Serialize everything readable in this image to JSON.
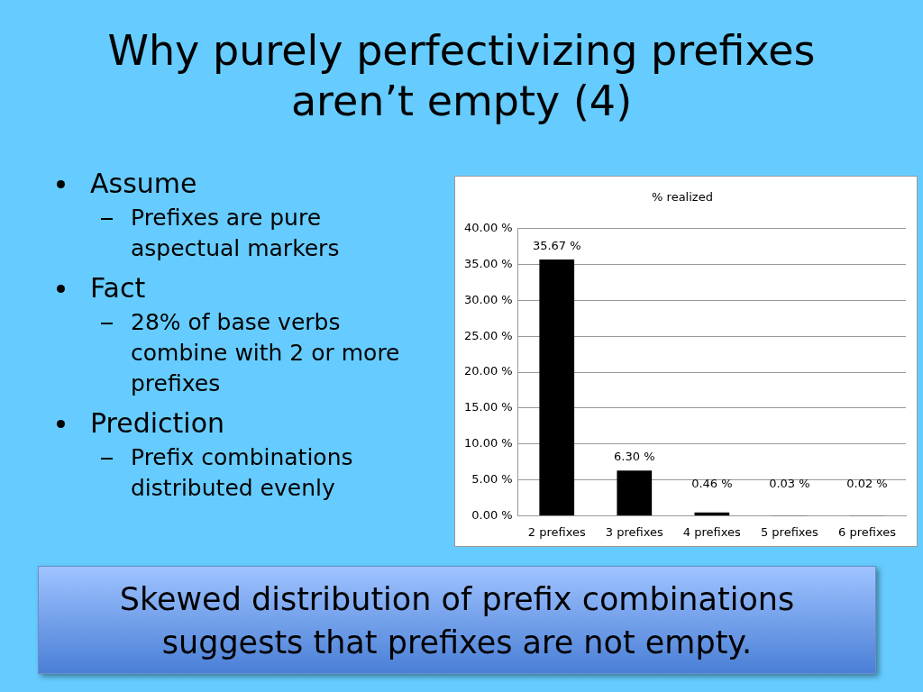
{
  "chart_data": {
    "type": "bar",
    "title": "% realized",
    "categories": [
      "2 prefixes",
      "3 prefixes",
      "4 prefixes",
      "5 prefixes",
      "6 prefixes"
    ],
    "values": [
      35.67,
      6.3,
      0.46,
      0.03,
      0.02
    ],
    "value_labels": [
      "35.67 %",
      "6.30 %",
      "0.46 %",
      "0.03 %",
      "0.02 %"
    ],
    "color": "#000000",
    "ylim": [
      0,
      40
    ],
    "yticks": [
      {
        "value": 0,
        "label": "0.00 %"
      },
      {
        "value": 5,
        "label": "5.00 %"
      },
      {
        "value": 10,
        "label": "10.00 %"
      },
      {
        "value": 15,
        "label": "15.00 %"
      },
      {
        "value": 20,
        "label": "20.00 %"
      },
      {
        "value": 25,
        "label": "25.00 %"
      },
      {
        "value": 30,
        "label": "30.00 %"
      },
      {
        "value": 35,
        "label": "35.00 %"
      },
      {
        "value": 40,
        "label": "40.00 %"
      }
    ],
    "grid": "y",
    "legend": false,
    "annotations": [
      "Why purely perfectivizing prefixes aren’t empty (4)",
      "Assume",
      "Prefixes are pure aspectual markers",
      "Fact",
      "28% of base verbs combine with 2 or more prefixes",
      "Prediction",
      "Prefix combinations distributed evenly",
      "Skewed distribution of prefix combinations suggests that prefixes are not empty."
    ]
  }
}
